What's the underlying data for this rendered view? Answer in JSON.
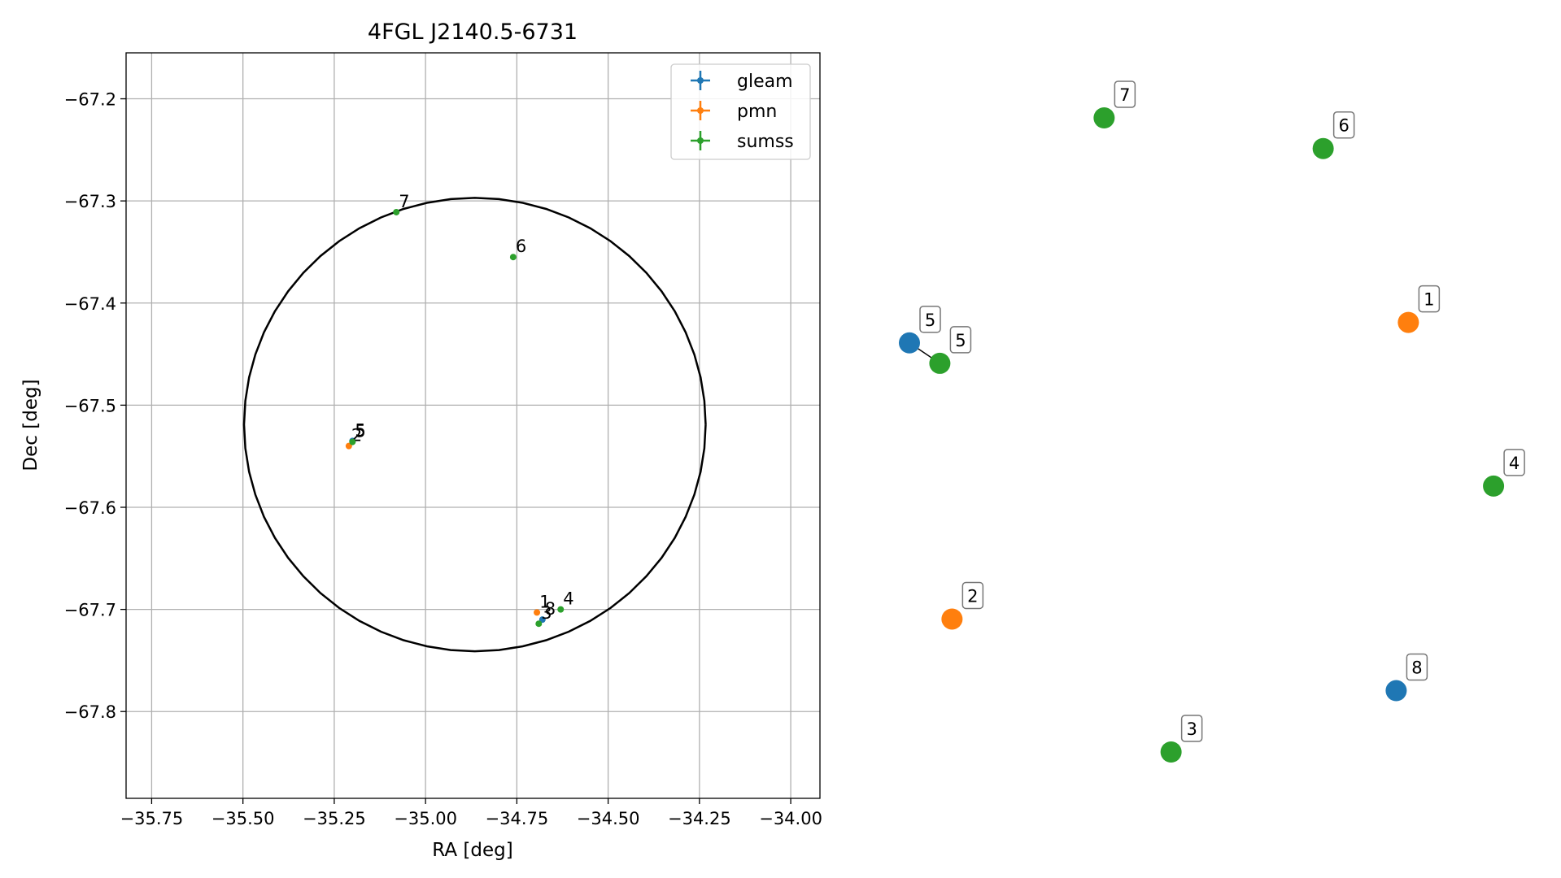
{
  "chart_data": [
    {
      "type": "scatter",
      "title": "4FGL J2140.5-6731",
      "xlabel": "RA [deg]",
      "ylabel": "Dec [deg]",
      "xlim": [
        -35.82,
        -33.92
      ],
      "ylim": [
        -67.885,
        -67.155
      ],
      "xticks": [
        -35.75,
        -35.5,
        -35.25,
        -35.0,
        -34.75,
        -34.5,
        -34.25,
        -34.0
      ],
      "xtick_labels": [
        "−35.75",
        "−35.50",
        "−35.25",
        "−35.00",
        "−34.75",
        "−34.50",
        "−34.25",
        "−34.00"
      ],
      "yticks": [
        -67.2,
        -67.3,
        -67.4,
        -67.5,
        -67.6,
        -67.7,
        -67.8
      ],
      "ytick_labels": [
        "−67.2",
        "−67.3",
        "−67.4",
        "−67.5",
        "−67.6",
        "−67.7",
        "−67.8"
      ],
      "grid": true,
      "legend_position": "top-right",
      "series": [
        {
          "name": "gleam",
          "color": "#1f77b4",
          "points": [
            {
              "label": "5",
              "x": -35.2,
              "y": -67.535
            },
            {
              "label": "8",
              "x": -34.68,
              "y": -67.71
            }
          ]
        },
        {
          "name": "pmn",
          "color": "#ff7f0e",
          "points": [
            {
              "label": "1",
              "x": -34.695,
              "y": -67.703
            },
            {
              "label": "2",
              "x": -35.21,
              "y": -67.54
            }
          ]
        },
        {
          "name": "sumss",
          "color": "#2ca02c",
          "points": [
            {
              "label": "3",
              "x": -34.69,
              "y": -67.714
            },
            {
              "label": "4",
              "x": -34.63,
              "y": -67.7
            },
            {
              "label": "5",
              "x": -35.2,
              "y": -67.536
            },
            {
              "label": "6",
              "x": -34.76,
              "y": -67.355
            },
            {
              "label": "7",
              "x": -35.08,
              "y": -67.311
            }
          ]
        }
      ],
      "region_circle": {
        "center_x": -34.865,
        "center_y": -67.519,
        "radius_x": 0.632,
        "radius_y": 0.222
      }
    },
    {
      "type": "scatter",
      "title": "",
      "xlabel": "",
      "ylabel": "",
      "axes_visible": false,
      "points": [
        {
          "label": "1",
          "series": "pmn",
          "x": 0.82,
          "y": 0.42
        },
        {
          "label": "2",
          "series": "pmn",
          "x": 0.07,
          "y": 0.71
        },
        {
          "label": "3",
          "series": "sumss",
          "x": 0.43,
          "y": 0.84
        },
        {
          "label": "4",
          "series": "sumss",
          "x": 0.96,
          "y": 0.58
        },
        {
          "label": "5",
          "series": "gleam",
          "x": 0.0,
          "y": 0.44
        },
        {
          "label": "5",
          "series": "sumss",
          "x": 0.05,
          "y": 0.46
        },
        {
          "label": "6",
          "series": "sumss",
          "x": 0.68,
          "y": 0.25
        },
        {
          "label": "7",
          "series": "sumss",
          "x": 0.32,
          "y": 0.22
        },
        {
          "label": "8",
          "series": "gleam",
          "x": 0.8,
          "y": 0.78
        }
      ],
      "links": [
        [
          4,
          5
        ]
      ]
    }
  ]
}
